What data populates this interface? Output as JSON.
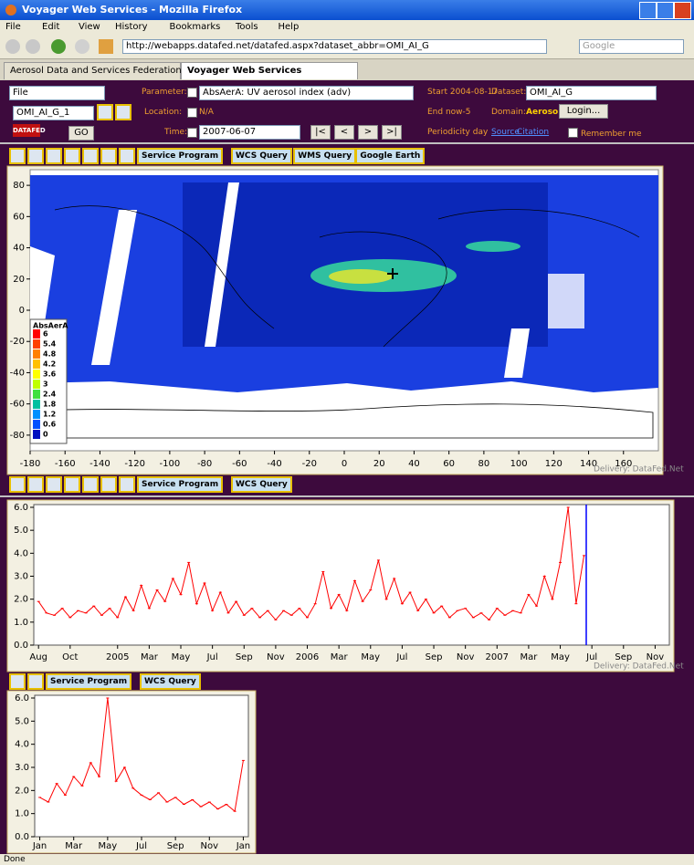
{
  "window": {
    "title": "Voyager Web Services - Mozilla Firefox",
    "menu": [
      "File",
      "Edit",
      "View",
      "History",
      "Bookmarks",
      "Tools",
      "Help"
    ],
    "url": "http://webapps.datafed.net/datafed.aspx?dataset_abbr=OMI_AI_G",
    "search": "Google",
    "tabs": [
      "Aerosol Data and Services Federation",
      "Voyager Web Services"
    ],
    "status": "Done"
  },
  "form": {
    "file": "File",
    "parameter_label": "Parameter:",
    "parameter": "AbsAerA: UV aerosol index (adv)",
    "start": "Start 2004-08-17",
    "dataset_label": "Dataset:",
    "dataset": "OMI_AI_G",
    "layer": "OMI_AI_G_1",
    "location_label": "Location:",
    "location": "N/A",
    "end": "End now-5",
    "domain_label": "Domain:",
    "domain": "Aerosol",
    "login": "Login...",
    "logo": "DATAFED",
    "go": "GO",
    "time_label": "Time:",
    "time": "2007-06-07",
    "nav": [
      "|<",
      "<",
      ">",
      ">|"
    ],
    "periodicity": "Periodicity day",
    "source": "Source",
    "citation": "Citation",
    "remember": "Remember me"
  },
  "map": {
    "buttons": [
      "Service Program",
      "WCS Query",
      "WMS Query",
      "Google Earth"
    ],
    "xlim": [
      -180,
      180
    ],
    "xticks": [
      -180,
      -160,
      -140,
      -120,
      -100,
      -80,
      -60,
      -40,
      -20,
      0,
      20,
      40,
      60,
      80,
      100,
      120,
      140,
      160
    ],
    "ylim": [
      -90,
      90
    ],
    "yticks": [
      80,
      60,
      40,
      20,
      0,
      -20,
      -40,
      -60,
      -80
    ],
    "legend": {
      "title": "AbsAerA",
      "levels": [
        6,
        5.4,
        4.8,
        4.2,
        3.6,
        3,
        2.4,
        1.8,
        1.2,
        0.6,
        0
      ],
      "colors": [
        "#ff0000",
        "#ff4000",
        "#ff8000",
        "#ffc000",
        "#ffff00",
        "#c0ff00",
        "#40e040",
        "#00c0a0",
        "#0090ff",
        "#0050ff",
        "#0010c0"
      ]
    },
    "credit": "Delivery: DataFed.Net"
  },
  "time_series": {
    "buttons": [
      "Service Program",
      "WCS Query"
    ],
    "type": "line",
    "color": "#ff0000",
    "xlim": [
      -0.3,
      39.9
    ],
    "xticks": [
      {
        "value": 0,
        "label": "Aug"
      },
      {
        "value": 2,
        "label": "Oct"
      },
      {
        "value": 5,
        "label": "2005"
      },
      {
        "value": 7,
        "label": "Mar"
      },
      {
        "value": 9,
        "label": "May"
      },
      {
        "value": 11,
        "label": "Jul"
      },
      {
        "value": 13,
        "label": "Sep"
      },
      {
        "value": 15,
        "label": "Nov"
      },
      {
        "value": 17,
        "label": "2006"
      },
      {
        "value": 19,
        "label": "Mar"
      },
      {
        "value": 21,
        "label": "May"
      },
      {
        "value": 23,
        "label": "Jul"
      },
      {
        "value": 25,
        "label": "Sep"
      },
      {
        "value": 27,
        "label": "Nov"
      },
      {
        "value": 29,
        "label": "2007"
      },
      {
        "value": 31,
        "label": "Mar"
      },
      {
        "value": 33,
        "label": "May"
      },
      {
        "value": 35,
        "label": "Jul"
      },
      {
        "value": 37,
        "label": "Sep"
      },
      {
        "value": 39,
        "label": "Nov"
      }
    ],
    "ylim": [
      0,
      6
    ],
    "yticks": [
      {
        "value": 0,
        "label": "0.0"
      },
      {
        "value": 1,
        "label": "1.0"
      },
      {
        "value": 2,
        "label": "2.0"
      },
      {
        "value": 3,
        "label": "3.0"
      },
      {
        "value": 4,
        "label": "4.0"
      },
      {
        "value": 5,
        "label": "5.0"
      },
      {
        "value": 6,
        "label": "6.0"
      }
    ],
    "x": [
      0,
      0.5,
      1,
      1.5,
      2,
      2.5,
      3,
      3.5,
      4,
      4.5,
      5,
      5.5,
      6,
      6.5,
      7,
      7.5,
      8,
      8.5,
      9,
      9.5,
      10,
      10.5,
      11,
      11.5,
      12,
      12.5,
      13,
      13.5,
      14,
      14.5,
      15,
      15.5,
      16,
      16.5,
      17,
      17.5,
      18,
      18.5,
      19,
      19.5,
      20,
      20.5,
      21,
      21.5,
      22,
      22.5,
      23,
      23.5,
      24,
      24.5,
      25,
      25.5,
      26,
      26.5,
      27,
      27.5,
      28,
      28.5,
      29,
      29.5,
      30,
      30.5,
      31,
      31.5,
      32,
      32.5,
      33,
      33.5,
      34,
      34.5
    ],
    "values": [
      1.9,
      1.4,
      1.3,
      1.6,
      1.2,
      1.5,
      1.4,
      1.7,
      1.3,
      1.6,
      1.2,
      2.1,
      1.5,
      2.6,
      1.6,
      2.4,
      1.9,
      2.9,
      2.2,
      3.6,
      1.8,
      2.7,
      1.5,
      2.3,
      1.4,
      1.9,
      1.3,
      1.6,
      1.2,
      1.5,
      1.1,
      1.5,
      1.3,
      1.6,
      1.2,
      1.8,
      3.2,
      1.6,
      2.2,
      1.5,
      2.8,
      1.9,
      2.4,
      3.7,
      2.0,
      2.9,
      1.8,
      2.3,
      1.5,
      2.0,
      1.4,
      1.7,
      1.2,
      1.5,
      1.6,
      1.2,
      1.4,
      1.1,
      1.6,
      1.3,
      1.5,
      1.4,
      2.2,
      1.7,
      3.0,
      2.0,
      3.6,
      6.0,
      1.8,
      3.9
    ],
    "credit": "Delivery: DataFed.Net"
  },
  "annual": {
    "buttons": [
      "Service Program",
      "WCS Query"
    ],
    "type": "line",
    "color": "#ff0000",
    "xlim": [
      -0.3,
      12.3
    ],
    "xticks": [
      {
        "value": 0,
        "label": "Jan"
      },
      {
        "value": 2,
        "label": "Mar"
      },
      {
        "value": 4,
        "label": "May"
      },
      {
        "value": 6,
        "label": "Jul"
      },
      {
        "value": 8,
        "label": "Sep"
      },
      {
        "value": 10,
        "label": "Nov"
      },
      {
        "value": 12,
        "label": "Jan"
      }
    ],
    "ylim": [
      0,
      6
    ],
    "yticks": [
      {
        "value": 0,
        "label": "0.0"
      },
      {
        "value": 1,
        "label": "1.0"
      },
      {
        "value": 2,
        "label": "2.0"
      },
      {
        "value": 3,
        "label": "3.0"
      },
      {
        "value": 4,
        "label": "4.0"
      },
      {
        "value": 5,
        "label": "5.0"
      },
      {
        "value": 6,
        "label": "6.0"
      }
    ],
    "x": [
      0,
      0.5,
      1,
      1.5,
      2,
      2.5,
      3,
      3.5,
      4,
      4.5,
      5,
      5.5,
      6,
      6.5,
      7,
      7.5,
      8,
      8.5,
      9,
      9.5,
      10,
      10.5,
      11,
      11.5,
      12
    ],
    "values": [
      1.7,
      1.5,
      2.3,
      1.8,
      2.6,
      2.2,
      3.2,
      2.6,
      6.0,
      2.4,
      3.0,
      2.1,
      1.8,
      1.6,
      1.9,
      1.5,
      1.7,
      1.4,
      1.6,
      1.3,
      1.5,
      1.2,
      1.4,
      1.1,
      3.3
    ]
  }
}
